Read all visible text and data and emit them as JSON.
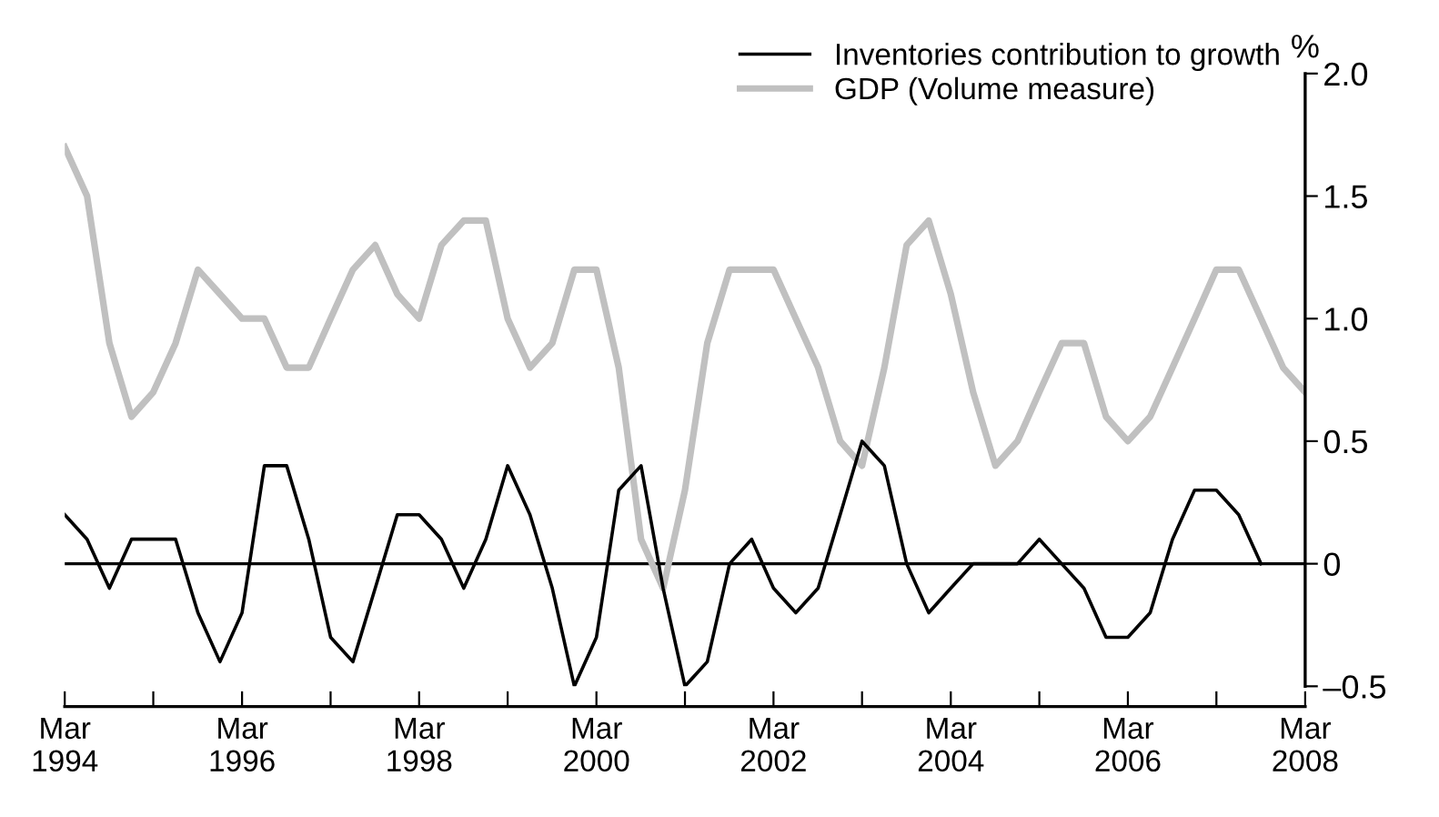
{
  "chart_data": {
    "type": "line",
    "x": [
      "1994-03",
      "1994-06",
      "1994-09",
      "1994-12",
      "1995-03",
      "1995-06",
      "1995-09",
      "1995-12",
      "1996-03",
      "1996-06",
      "1996-09",
      "1996-12",
      "1997-03",
      "1997-06",
      "1997-09",
      "1997-12",
      "1998-03",
      "1998-06",
      "1998-09",
      "1998-12",
      "1999-03",
      "1999-06",
      "1999-09",
      "1999-12",
      "2000-03",
      "2000-06",
      "2000-09",
      "2000-12",
      "2001-03",
      "2001-06",
      "2001-09",
      "2001-12",
      "2002-03",
      "2002-06",
      "2002-09",
      "2002-12",
      "2003-03",
      "2003-06",
      "2003-09",
      "2003-12",
      "2004-03",
      "2004-06",
      "2004-09",
      "2004-12",
      "2005-03",
      "2005-06",
      "2005-09",
      "2005-12",
      "2006-03",
      "2006-06",
      "2006-09",
      "2006-12",
      "2007-03",
      "2007-06",
      "2007-09",
      "2007-12",
      "2008-03"
    ],
    "series": [
      {
        "name": "Inventories contribution to growth",
        "color": "#000000",
        "values": [
          0.2,
          0.1,
          -0.1,
          0.1,
          0.1,
          0.1,
          -0.2,
          -0.4,
          -0.2,
          0.4,
          0.4,
          0.1,
          -0.3,
          -0.4,
          -0.1,
          0.2,
          0.2,
          0.1,
          -0.1,
          0.1,
          0.4,
          0.2,
          -0.1,
          -0.5,
          -0.3,
          0.3,
          0.4,
          -0.1,
          -0.5,
          -0.4,
          0.0,
          0.1,
          -0.1,
          -0.2,
          -0.1,
          0.2,
          0.5,
          0.4,
          0.0,
          -0.2,
          -0.1,
          0.0,
          0.0,
          0.0,
          0.1,
          0.0,
          -0.1,
          -0.3,
          -0.3,
          -0.2,
          0.1,
          0.3,
          0.3,
          0.2,
          0.0,
          null,
          null
        ]
      },
      {
        "name": "GDP (Volume measure)",
        "color": "#c0c0c0",
        "values": [
          1.7,
          1.5,
          0.9,
          0.6,
          0.7,
          0.9,
          1.2,
          1.1,
          1.0,
          1.0,
          0.8,
          0.8,
          1.0,
          1.2,
          1.3,
          1.1,
          1.0,
          1.3,
          1.4,
          1.4,
          1.0,
          0.8,
          0.9,
          1.2,
          1.2,
          0.8,
          0.1,
          -0.1,
          0.3,
          0.9,
          1.2,
          1.2,
          1.2,
          1.0,
          0.8,
          0.5,
          0.4,
          0.8,
          1.3,
          1.4,
          1.1,
          0.7,
          0.4,
          0.5,
          0.7,
          0.9,
          0.9,
          0.6,
          0.5,
          0.6,
          0.8,
          1.0,
          1.2,
          1.2,
          1.0,
          0.8,
          0.7
        ]
      }
    ],
    "ylabel": "%",
    "ylim": [
      -0.5,
      2.0
    ],
    "yticks": [
      {
        "value": 2.0,
        "label": "2.0"
      },
      1.5,
      {
        "value": 1.0,
        "label": "1.0"
      },
      0.5,
      0,
      {
        "value": -0.5,
        "label": "–0.5"
      }
    ],
    "xlim": [
      "1994-03",
      "2008-03"
    ],
    "xticks": [
      {
        "value": "1994-03",
        "label": "Mar\n1994"
      },
      {
        "value": "1995-03",
        "label": null
      },
      {
        "value": "1996-03",
        "label": "Mar\n1996"
      },
      {
        "value": "1997-03",
        "label": null
      },
      {
        "value": "1998-03",
        "label": "Mar\n1998"
      },
      {
        "value": "1999-03",
        "label": null
      },
      {
        "value": "2000-03",
        "label": "Mar\n2000"
      },
      {
        "value": "2001-03",
        "label": null
      },
      {
        "value": "2002-03",
        "label": "Mar\n2002"
      },
      {
        "value": "2003-03",
        "label": null
      },
      {
        "value": "2004-03",
        "label": "Mar\n2004"
      },
      {
        "value": "2005-03",
        "label": null
      },
      {
        "value": "2006-03",
        "label": "Mar\n2006"
      },
      {
        "value": "2007-03",
        "label": null
      },
      {
        "value": "2008-03",
        "label": "Mar\n2008"
      }
    ],
    "ref_lines": [
      {
        "axis": "y",
        "value": 0,
        "label": null,
        "color": "#000000"
      }
    ],
    "legend": "top right",
    "grid": false
  }
}
